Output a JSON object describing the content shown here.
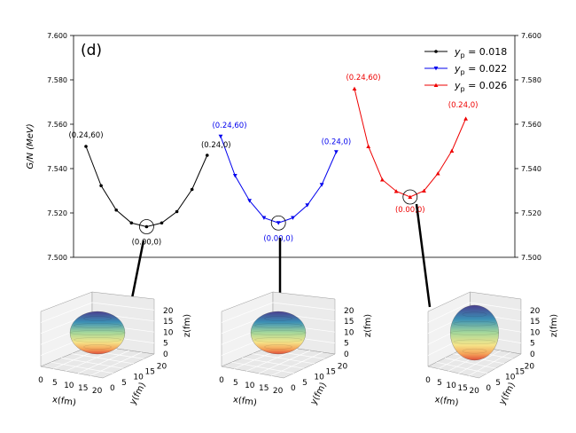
{
  "chart_data": {
    "type": "line",
    "panel_label": "(d)",
    "ylabel": "G/N (MeV)",
    "ylim": [
      7.5,
      7.6
    ],
    "yticks": [
      "7.500",
      "7.520",
      "7.540",
      "7.560",
      "7.580",
      "7.600"
    ],
    "ytick_values": [
      7.5,
      7.52,
      7.54,
      7.56,
      7.58,
      7.6
    ],
    "legend_position": "top-right",
    "series": [
      {
        "name": "y_p = 0.018",
        "legend_label": "0.018",
        "color": "#000000",
        "marker": "circle",
        "values": [
          7.55,
          7.5323,
          7.5213,
          7.5155,
          7.5138,
          7.5155,
          7.5206,
          7.5306,
          7.546
        ],
        "annotations": [
          {
            "text": "(0.24,60)",
            "at": 0
          },
          {
            "text": "(0.24,0)",
            "at": 8
          },
          {
            "text": "(0.00,0)",
            "at": 4
          }
        ]
      },
      {
        "name": "y_p = 0.022",
        "legend_label": "0.022",
        "color": "#0000ee",
        "marker": "triangle-down",
        "values": [
          7.5545,
          7.5368,
          7.5255,
          7.5178,
          7.5155,
          7.5178,
          7.5235,
          7.5327,
          7.5475
        ],
        "annotations": [
          {
            "text": "(0.24,60)",
            "at": 0
          },
          {
            "text": "(0.24,0)",
            "at": 8
          },
          {
            "text": "(0.00,0)",
            "at": 4
          }
        ]
      },
      {
        "name": "y_p = 0.026",
        "legend_label": "0.026",
        "color": "#ee0000",
        "marker": "triangle-up",
        "values": [
          7.576,
          7.55,
          7.535,
          7.5298,
          7.5272,
          7.53,
          7.5378,
          7.548,
          7.5625
        ],
        "annotations": [
          {
            "text": "(0.24,60)",
            "at": 0
          },
          {
            "text": "(0.24,0)",
            "at": 8
          },
          {
            "text": "(0.00,0)",
            "at": 4
          }
        ]
      }
    ],
    "insets": [
      {
        "name": "shape-0.018",
        "xlabel": "x(fm)",
        "ylabel": "y(fm)",
        "zlabel": "z(fm)",
        "xticks": [
          "0",
          "5",
          "10",
          "15",
          "20"
        ],
        "yticks": [
          "0",
          "5",
          "10",
          "15",
          "20"
        ],
        "zticks": [
          "0",
          "5",
          "10",
          "15",
          "20"
        ],
        "shape": "oblate"
      },
      {
        "name": "shape-0.022",
        "xlabel": "x(fm)",
        "ylabel": "y(fm)",
        "zlabel": "z(fm)",
        "xticks": [
          "0",
          "5",
          "10",
          "15",
          "20"
        ],
        "yticks": [
          "0",
          "5",
          "10",
          "15",
          "20"
        ],
        "zticks": [
          "0",
          "5",
          "10",
          "15",
          "20"
        ],
        "shape": "oblate"
      },
      {
        "name": "shape-0.026",
        "xlabel": "x(fm)",
        "ylabel": "y(fm)",
        "zlabel": "z(fm)",
        "xticks": [
          "0",
          "5",
          "10",
          "15",
          "20"
        ],
        "yticks": [
          "0",
          "5",
          "10",
          "15",
          "20"
        ],
        "zticks": [
          "0",
          "5",
          "10",
          "15",
          "20"
        ],
        "shape": "spherical"
      }
    ]
  }
}
